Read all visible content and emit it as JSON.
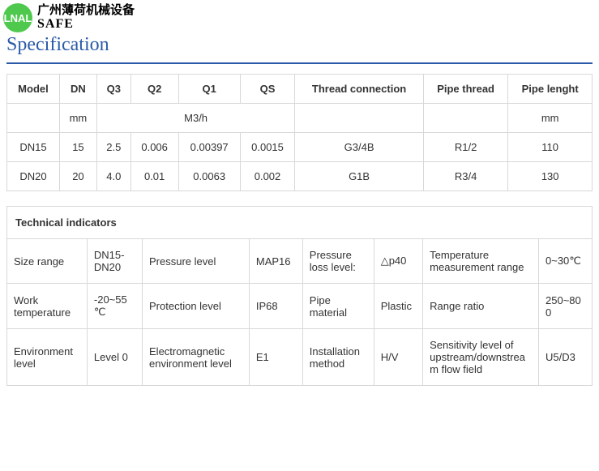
{
  "header": {
    "logo_text": "LNAL",
    "logo_cn": "广州薄荷机械设备",
    "logo_safe": "SAFE",
    "title": "Specification"
  },
  "table1": {
    "headers": [
      "Model",
      "DN",
      "Q3",
      "Q2",
      "Q1",
      "QS",
      "Thread connection",
      "Pipe thread",
      "Pipe lenght"
    ],
    "units_row": {
      "dn": "mm",
      "q_unit": "M3/h",
      "pl": "mm"
    },
    "rows": [
      {
        "model": "DN15",
        "dn": "15",
        "q3": "2.5",
        "q2": "0.006",
        "q1": "0.00397",
        "qs": "0.0015",
        "thread": "G3/4B",
        "pipe_thread": "R1/2",
        "length": "110"
      },
      {
        "model": "DN20",
        "dn": "20",
        "q3": "4.0",
        "q2": "0.01",
        "q1": "0.0063",
        "qs": "0.002",
        "thread": "G1B",
        "pipe_thread": "R3/4",
        "length": "130"
      }
    ]
  },
  "table2": {
    "heading": "Technical indicators",
    "rows": [
      {
        "c1": "Size range",
        "c2": "DN15-DN20",
        "c3": "Pressure level",
        "c4": "MAP16",
        "c5": "Pressure loss level:",
        "c6": "△p40",
        "c7": "Temperature measurement range",
        "c8": "0~30℃"
      },
      {
        "c1": "Work temperature",
        "c2": "-20~55℃",
        "c3": "Protection level",
        "c4": "IP68",
        "c5": "Pipe material",
        "c6": "Plastic",
        "c7": "Range ratio",
        "c8": "250~800"
      },
      {
        "c1": "Environment level",
        "c2": "Level 0",
        "c3": "Electromagnetic environment level",
        "c4": "E1",
        "c5": "Installation method",
        "c6": "H/V",
        "c7": "Sensitivity level of upstream/downstream flow field",
        "c8": "U5/D3"
      }
    ]
  }
}
